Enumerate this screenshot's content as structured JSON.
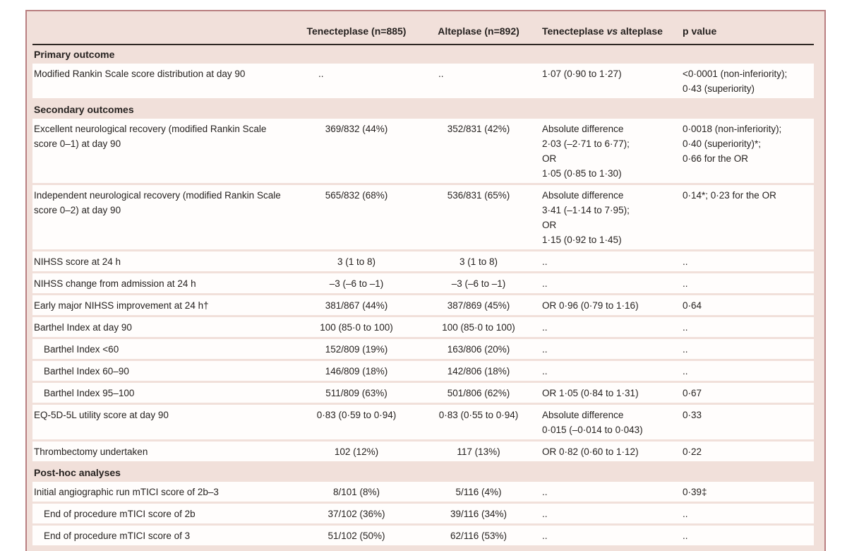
{
  "colors": {
    "panel_pink": "#f1e0da",
    "frame_red": "#b97f81",
    "header_rule_dark": "#2e2723",
    "row_white": "#fffdfc",
    "text_dark": "#262220"
  },
  "table": {
    "empty_cell_marker": "..",
    "columns": {
      "tenecteplase": "Tenecteplase (n=885)",
      "alteplase": "Alteplase (n=892)",
      "comparison": {
        "pre": "Tenecteplase ",
        "italic": "vs",
        "post": " alteplase"
      },
      "p_value": "p value"
    },
    "sections": [
      {
        "title": "Primary outcome",
        "rows": [
          {
            "label": "Modified Rankin Scale score distribution at day 90",
            "indent": false,
            "ten": "..",
            "alt": "..",
            "comp": "1·07 (0·90 to 1·27)",
            "p": [
              "<0·0001 (non-inferiority);",
              "0·43 (superiority)"
            ]
          }
        ]
      },
      {
        "title": "Secondary outcomes",
        "rows": [
          {
            "label": "Excellent neurological recovery (modified Rankin Scale score 0–1) at day 90",
            "indent": false,
            "ten": "369/832 (44%)",
            "alt": "352/831 (42%)",
            "comp": [
              "Absolute difference",
              "2·03 (–2·71 to 6·77);",
              "OR",
              "1·05 (0·85 to 1·30)"
            ],
            "p": [
              "0·0018 (non-inferiority);",
              "0·40 (superiority)*;",
              "0·66 for the OR"
            ]
          },
          {
            "label": "Independent neurological recovery (modified Rankin Scale score 0–2) at day 90",
            "indent": false,
            "ten": "565/832 (68%)",
            "alt": "536/831 (65%)",
            "comp": [
              "Absolute difference",
              "3·41 (–1·14 to 7·95);",
              "OR",
              "1·15 (0·92 to 1·45)"
            ],
            "p": "0·14*; 0·23 for the OR"
          },
          {
            "label": "NIHSS score at 24 h",
            "indent": false,
            "ten": "3 (1 to 8)",
            "alt": "3 (1 to 8)",
            "comp": "..",
            "p": ".."
          },
          {
            "label": "NIHSS change from admission at 24 h",
            "indent": false,
            "ten": "–3 (–6 to –1)",
            "alt": "–3 (–6 to –1)",
            "comp": "..",
            "p": ".."
          },
          {
            "label": "Early major NIHSS improvement at 24 h†",
            "indent": false,
            "ten": "381/867 (44%)",
            "alt": "387/869 (45%)",
            "comp": "OR 0·96 (0·79 to 1·16)",
            "p": "0·64"
          },
          {
            "label": "Barthel Index at day 90",
            "indent": false,
            "ten": "100 (85·0 to 100)",
            "alt": "100 (85·0 to 100)",
            "comp": "..",
            "p": ".."
          },
          {
            "label": "Barthel Index <60",
            "indent": true,
            "ten": "152/809 (19%)",
            "alt": "163/806 (20%)",
            "comp": "..",
            "p": ".."
          },
          {
            "label": "Barthel Index 60–90",
            "indent": true,
            "ten": "146/809 (18%)",
            "alt": "142/806 (18%)",
            "comp": "..",
            "p": ".."
          },
          {
            "label": "Barthel Index 95–100",
            "indent": true,
            "ten": "511/809 (63%)",
            "alt": "501/806 (62%)",
            "comp": "OR 1·05 (0·84 to 1·31)",
            "p": "0·67"
          },
          {
            "label": "EQ-5D-5L utility score at day 90",
            "indent": false,
            "ten": "0·83 (0·59 to 0·94)",
            "alt": "0·83 (0·55 to 0·94)",
            "comp": [
              "Absolute difference",
              "0·015 (–0·014 to 0·043)"
            ],
            "p": "0·33"
          },
          {
            "label": "Thrombectomy undertaken",
            "indent": false,
            "ten": "102 (12%)",
            "alt": "117 (13%)",
            "comp": "OR 0·82 (0·60 to 1·12)",
            "p": "0·22"
          }
        ]
      },
      {
        "title": "Post-hoc analyses",
        "rows": [
          {
            "label": "Initial angiographic run mTICI score of 2b–3",
            "indent": false,
            "ten": "8/101 (8%)",
            "alt": "5/116 (4%)",
            "comp": "..",
            "p": "0·39‡"
          },
          {
            "label": "End of procedure mTICI score of 2b",
            "indent": true,
            "ten": "37/102 (36%)",
            "alt": "39/116 (34%)",
            "comp": "..",
            "p": ".."
          },
          {
            "label": "End of procedure mTICI score of 3",
            "indent": true,
            "ten": "51/102 (50%)",
            "alt": "62/116 (53%)",
            "comp": "..",
            "p": ".."
          }
        ]
      }
    ]
  }
}
